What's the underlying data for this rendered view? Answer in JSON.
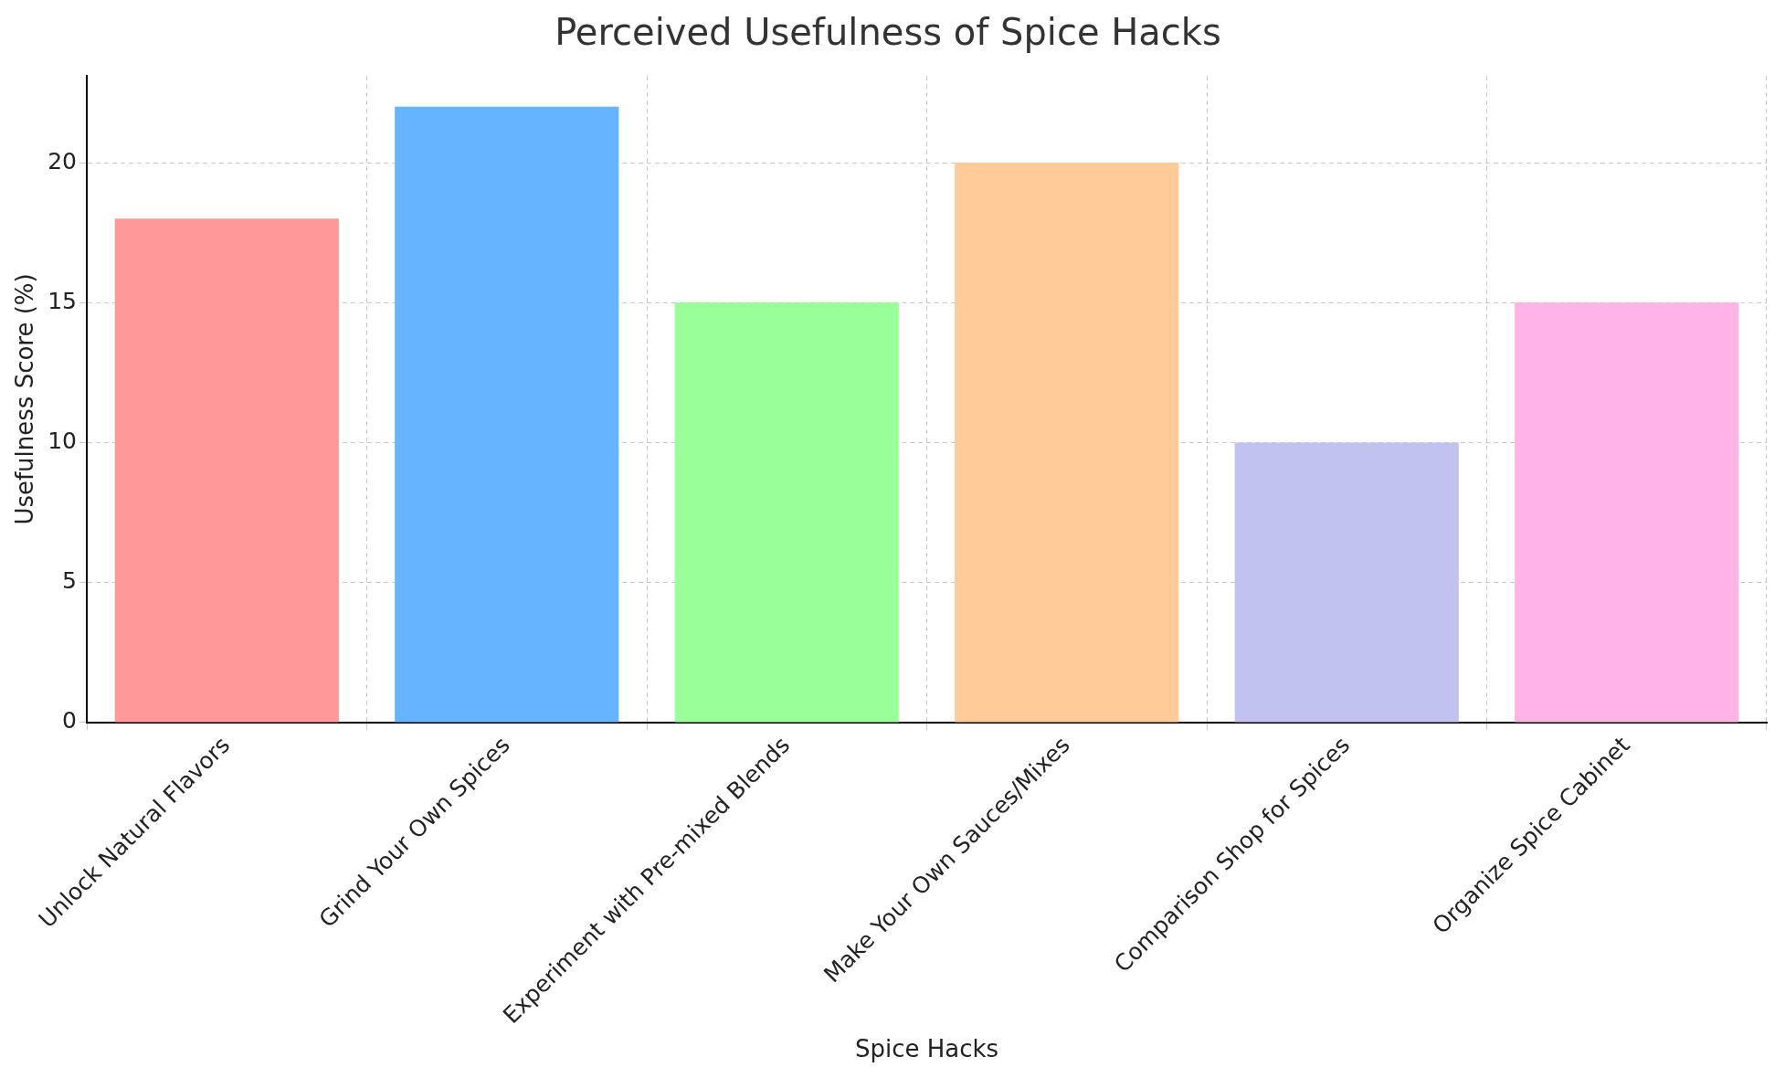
{
  "chart_data": {
    "type": "bar",
    "title": "Perceived Usefulness of Spice Hacks",
    "xlabel": "Spice Hacks",
    "ylabel": "Usefulness Score (%)",
    "categories": [
      "Unlock Natural Flavors",
      "Grind Your Own Spices",
      "Experiment with Pre-mixed Blends",
      "Make Your Own Sauces/Mixes",
      "Comparison Shop for Spices",
      "Organize Spice Cabinet"
    ],
    "values": [
      18,
      22,
      15,
      20,
      10,
      15
    ],
    "colors": [
      "#ff9999",
      "#66b3ff",
      "#99ff99",
      "#ffcc99",
      "#c2c2f0",
      "#ffb3e6"
    ],
    "ylim": [
      0,
      23.1
    ],
    "yticks": [
      0,
      5,
      10,
      15,
      20
    ],
    "grid": true
  }
}
